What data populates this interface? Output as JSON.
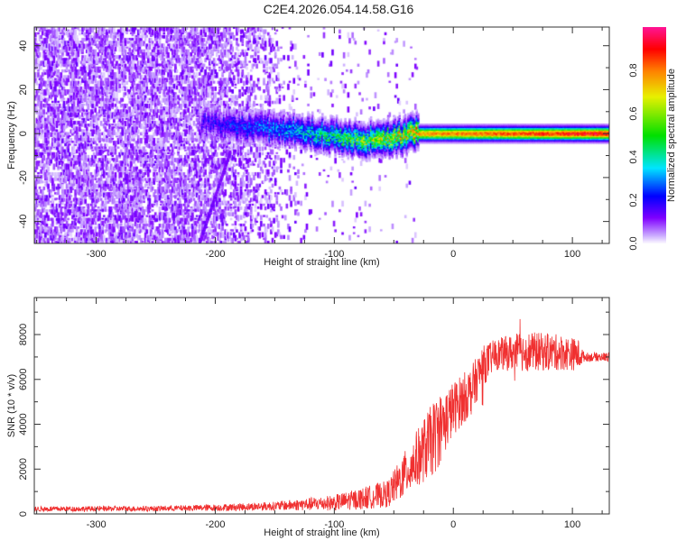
{
  "title": "C2E4.2026.054.14.58.G16",
  "chart_data": [
    {
      "type": "heatmap",
      "title": "C2E4.2026.054.14.58.G16",
      "xlabel": "Height of straight line (km)",
      "ylabel": "Frequency (Hz)",
      "xlim": [
        -352,
        131
      ],
      "ylim": [
        -50,
        48.5
      ],
      "xticks": [
        -300,
        -200,
        -100,
        0,
        100
      ],
      "xtick_labels": [
        "-300",
        "-200",
        "-100",
        "0",
        "100"
      ],
      "yticks": [
        -40,
        -20,
        0,
        20,
        40
      ],
      "ytick_labels": [
        "-40",
        "-20",
        "0",
        "20",
        "40"
      ],
      "colorbar": {
        "label": "Normalized spectral amplitude",
        "range": [
          0,
          1
        ],
        "ticks": [
          0.0,
          0.2,
          0.4,
          0.6,
          0.8
        ],
        "tick_labels": [
          "0.0",
          "0.2",
          "0.4",
          "0.6",
          "0.8"
        ],
        "colormap": [
          "#ffffff",
          "#c9a8ff",
          "#7f00ff",
          "#0000ff",
          "#00e5ff",
          "#00e000",
          "#e8f000",
          "#ff8000",
          "#ff0000",
          "#ff1493"
        ]
      },
      "features": {
        "noise_region_km": [
          -352,
          -130
        ],
        "signal_band_center_hz": [
          {
            "x": -210,
            "f": 5
          },
          {
            "x": -150,
            "f": 2
          },
          {
            "x": -100,
            "f": -1
          },
          {
            "x": -75,
            "f": -3
          },
          {
            "x": -30,
            "f": 0
          },
          {
            "x": 131,
            "f": 0
          }
        ],
        "signal_amplitude": [
          {
            "x": -210,
            "a": 0.2
          },
          {
            "x": -140,
            "a": 0.35
          },
          {
            "x": -90,
            "a": 0.55
          },
          {
            "x": -30,
            "a": 0.8
          },
          {
            "x": 131,
            "a": 0.95
          }
        ]
      }
    },
    {
      "type": "line",
      "xlabel": "Height of straight line (km)",
      "ylabel": "SNR (10 * v/v)",
      "xlim": [
        -352,
        131
      ],
      "ylim": [
        0,
        9650
      ],
      "xticks": [
        -300,
        -200,
        -100,
        0,
        100
      ],
      "xtick_labels": [
        "-300",
        "-200",
        "-100",
        "0",
        "100"
      ],
      "yticks": [
        0,
        2000,
        4000,
        6000,
        8000
      ],
      "ytick_labels": [
        "0",
        "2000",
        "4000",
        "6000",
        "8000"
      ],
      "color": "#f03030",
      "trend": {
        "x": [
          -352,
          -250,
          -200,
          -150,
          -100,
          -75,
          -55,
          -45,
          -30,
          -15,
          0,
          15,
          25,
          35,
          60,
          90,
          105,
          110,
          131
        ],
        "y": [
          220,
          240,
          280,
          350,
          500,
          700,
          900,
          1500,
          2500,
          3500,
          4700,
          5500,
          6600,
          7100,
          7250,
          7200,
          7100,
          7000,
          7000
        ],
        "noise": [
          120,
          120,
          150,
          200,
          350,
          500,
          600,
          900,
          1300,
          1700,
          1200,
          1100,
          900,
          700,
          900,
          800,
          700,
          200,
          200
        ]
      }
    }
  ]
}
